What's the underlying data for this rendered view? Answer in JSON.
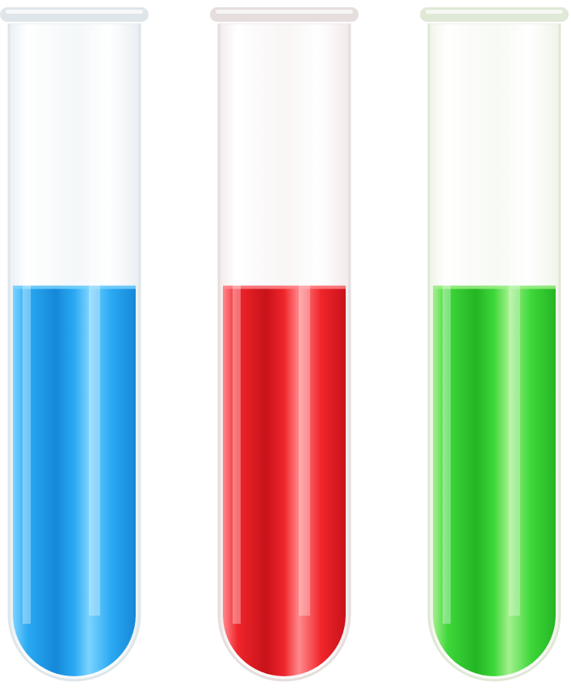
{
  "scene": {
    "background": "#ffffff",
    "tubes": [
      {
        "name": "blue",
        "fill_fraction": 0.6,
        "liquid_color": "#2aa9f2",
        "liquid_dark": "#1588d8",
        "liquid_light": "#7cd3ff",
        "glass_tint": "#e6eef3",
        "rim_color": "#dfe6ea"
      },
      {
        "name": "red",
        "fill_fraction": 0.6,
        "liquid_color": "#f0252b",
        "liquid_dark": "#c8121a",
        "liquid_light": "#ff8a8d",
        "glass_tint": "#f1e8e8",
        "rim_color": "#e6dddd"
      },
      {
        "name": "green",
        "fill_fraction": 0.6,
        "liquid_color": "#3ed73a",
        "liquid_dark": "#24b524",
        "liquid_light": "#a4f08d",
        "glass_tint": "#eef3e6",
        "rim_color": "#e0e8d6"
      }
    ]
  }
}
